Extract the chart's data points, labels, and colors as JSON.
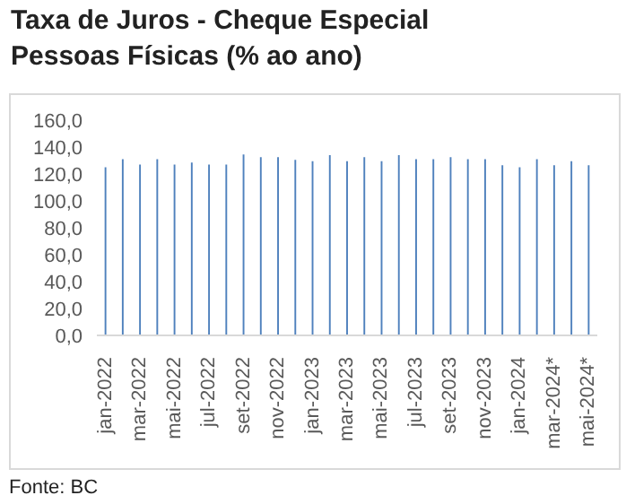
{
  "chart_data": {
    "type": "bar",
    "title": "Taxa de Juros - Cheque Especial\nPessoas Físicas (% ao ano)",
    "categories": [
      "jan-2022",
      null,
      "mar-2022",
      null,
      "mai-2022",
      null,
      "jul-2022",
      null,
      "set-2022",
      null,
      "nov-2022",
      null,
      "jan-2023",
      null,
      "mar-2023",
      null,
      "mai-2023",
      null,
      "jul-2023",
      null,
      "set-2023",
      null,
      "nov-2023",
      null,
      "jan-2024",
      null,
      "mar-2024*",
      null,
      "mai-2024*"
    ],
    "values": [
      125,
      131,
      127,
      131,
      127,
      128.5,
      127,
      127,
      134.5,
      132.5,
      132.5,
      130.5,
      129.5,
      134,
      129.5,
      132.5,
      129.5,
      134,
      131,
      131,
      132.5,
      131,
      131,
      126.5,
      125,
      131,
      126.5,
      129.5,
      126.5
    ],
    "color": "#4f81bd",
    "ylim": [
      0,
      160
    ],
    "yticks": [
      {
        "value": 0,
        "label": "0,0"
      },
      {
        "value": 20,
        "label": "20,0"
      },
      {
        "value": 40,
        "label": "40,0"
      },
      {
        "value": 60,
        "label": "60,0"
      },
      {
        "value": 80,
        "label": "80,0"
      },
      {
        "value": 100,
        "label": "100,0"
      },
      {
        "value": 120,
        "label": "120,0"
      },
      {
        "value": 140,
        "label": "140,0"
      },
      {
        "value": 160,
        "label": "160,0"
      }
    ],
    "grid": false,
    "annotations": [
      "Fonte: BC"
    ]
  }
}
